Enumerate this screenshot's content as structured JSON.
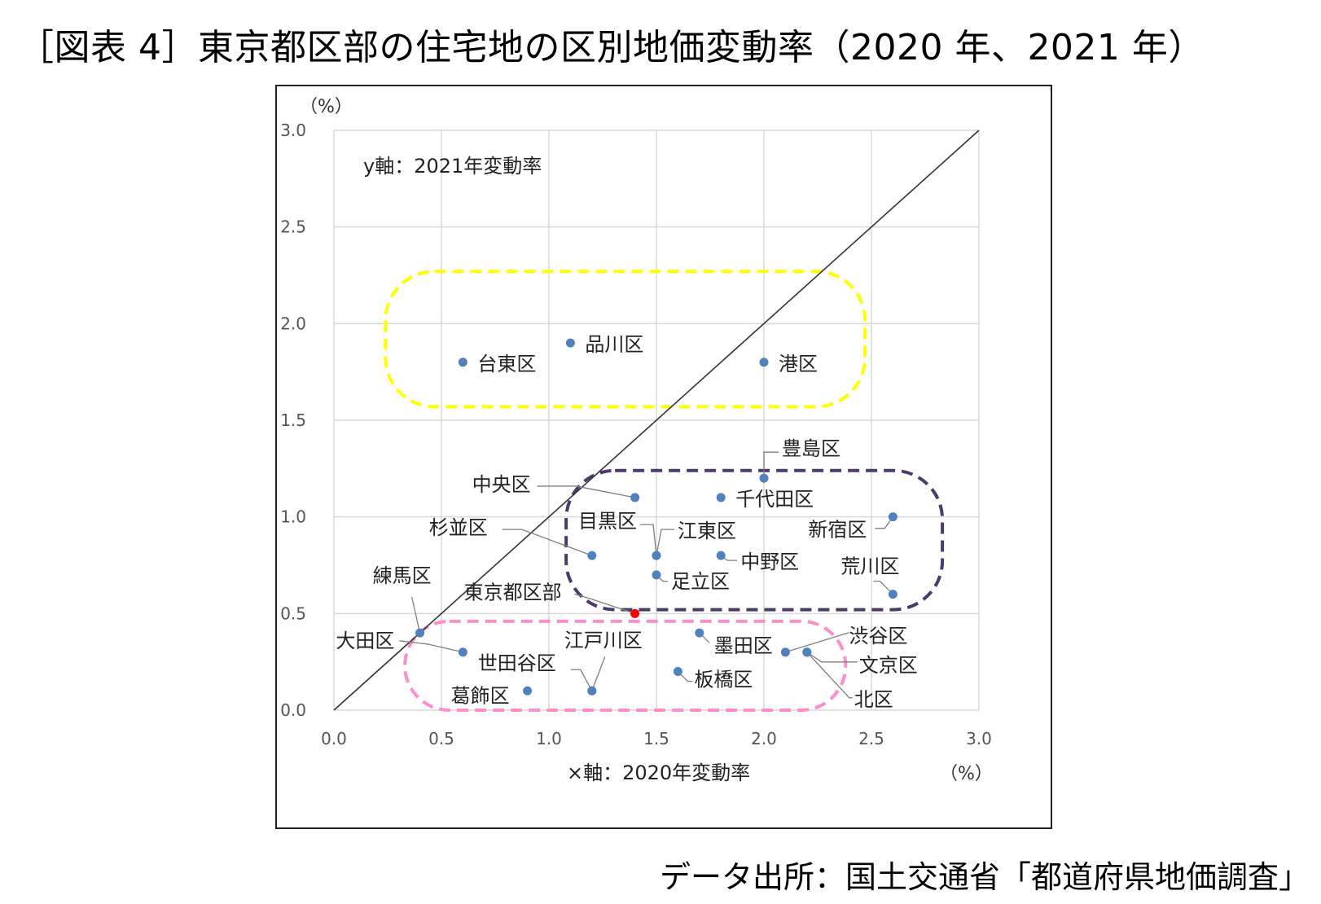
{
  "title": "［図表 4］東京都区部の住宅地の区別地価変動率（2020 年、2021 年）",
  "source": "データ出所：国土交通省「都道府県地価調査」",
  "chart_data": {
    "type": "scatter",
    "x_axis_label": "×軸：2020年変動率",
    "y_axis_label": "y軸：2021年変動率",
    "x_unit": "（%）",
    "y_unit": "（%）",
    "xlim": [
      0.0,
      3.0
    ],
    "ylim": [
      0.0,
      3.0
    ],
    "x_ticks": [
      "0.0",
      "0.5",
      "1.0",
      "1.5",
      "2.0",
      "2.5",
      "3.0"
    ],
    "y_ticks": [
      "0.0",
      "0.5",
      "1.0",
      "1.5",
      "2.0",
      "2.5",
      "3.0"
    ],
    "grid": true,
    "reference_line": "y = x",
    "marker_color": "#4f81bd",
    "highlight_color": "#ff0000",
    "group_colors": {
      "yellow": "#ffff00",
      "purple": "#4b3a6b",
      "pink": "#ff8ccc"
    },
    "points": [
      {
        "name": "台東区",
        "x": 0.6,
        "y": 1.8
      },
      {
        "name": "品川区",
        "x": 1.1,
        "y": 1.9
      },
      {
        "name": "港区",
        "x": 2.0,
        "y": 1.8
      },
      {
        "name": "豊島区",
        "x": 2.0,
        "y": 1.2
      },
      {
        "name": "中央区",
        "x": 1.4,
        "y": 1.1
      },
      {
        "name": "千代田区",
        "x": 1.8,
        "y": 1.1
      },
      {
        "name": "新宿区",
        "x": 2.6,
        "y": 1.0
      },
      {
        "name": "目黒区",
        "x": 1.5,
        "y": 0.8
      },
      {
        "name": "江東区",
        "x": 1.5,
        "y": 0.8
      },
      {
        "name": "杉並区",
        "x": 1.2,
        "y": 0.8
      },
      {
        "name": "中野区",
        "x": 1.8,
        "y": 0.8
      },
      {
        "name": "足立区",
        "x": 1.5,
        "y": 0.7
      },
      {
        "name": "荒川区",
        "x": 2.6,
        "y": 0.6
      },
      {
        "name": "練馬区",
        "x": 0.4,
        "y": 0.4
      },
      {
        "name": "東京都区部",
        "x": 1.4,
        "y": 0.5,
        "highlight": true
      },
      {
        "name": "墨田区",
        "x": 1.7,
        "y": 0.4
      },
      {
        "name": "大田区",
        "x": 0.6,
        "y": 0.3
      },
      {
        "name": "渋谷区",
        "x": 2.1,
        "y": 0.3
      },
      {
        "name": "文京区",
        "x": 2.2,
        "y": 0.3
      },
      {
        "name": "世田谷区",
        "x": 1.2,
        "y": 0.1
      },
      {
        "name": "江戸川区",
        "x": 1.2,
        "y": 0.1
      },
      {
        "name": "板橋区",
        "x": 1.6,
        "y": 0.2
      },
      {
        "name": "葛飾区",
        "x": 0.9,
        "y": 0.1
      },
      {
        "name": "北区",
        "x": 2.2,
        "y": 0.3
      }
    ]
  }
}
